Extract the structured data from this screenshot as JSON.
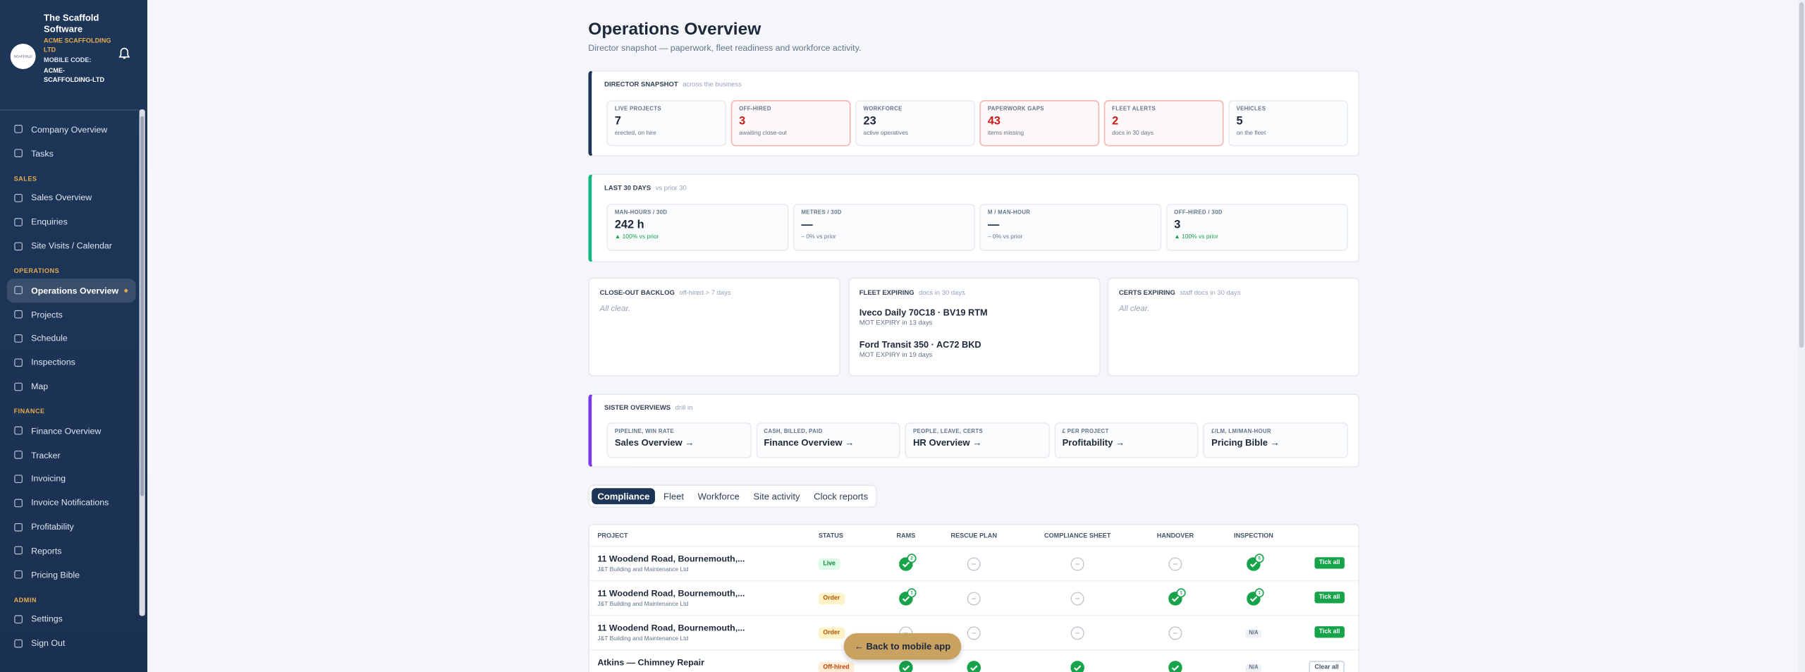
{
  "sidebar": {
    "brand": "The Scaffold Software",
    "company": "ACME SCAFFOLDING LTD",
    "mobile_code_label": "MOBILE CODE:",
    "mobile_code": "ACME-SCAFFOLDING-LTD",
    "groups": [
      {
        "items": [
          "Company Overview",
          "Tasks"
        ]
      },
      {
        "label": "SALES",
        "items": [
          "Sales Overview",
          "Enquiries",
          "Site Visits / Calendar"
        ]
      },
      {
        "label": "OPERATIONS",
        "items": [
          "Operations Overview",
          "Projects",
          "Schedule",
          "Inspections",
          "Map"
        ],
        "active": 0
      },
      {
        "label": "FINANCE",
        "items": [
          "Finance Overview",
          "Tracker",
          "Invoicing",
          "Invoice Notifications",
          "Profitability",
          "Reports",
          "Pricing Bible"
        ]
      },
      {
        "label": "ADMIN",
        "items": [
          "Settings",
          "Sign Out"
        ]
      }
    ]
  },
  "header": {
    "title": "Operations Overview",
    "subtitle": "Director snapshot — paperwork, fleet readiness and workforce activity."
  },
  "snapshot": {
    "title": "DIRECTOR SNAPSHOT",
    "hint": "across the business",
    "tiles": [
      {
        "label": "LIVE PROJECTS",
        "value": "7",
        "note": "erected, on hire"
      },
      {
        "label": "OFF-HIRED",
        "value": "3",
        "note": "awaiting close-out",
        "alert": true
      },
      {
        "label": "WORKFORCE",
        "value": "23",
        "note": "active operatives"
      },
      {
        "label": "PAPERWORK GAPS",
        "value": "43",
        "note": "items missing",
        "alert": true
      },
      {
        "label": "FLEET ALERTS",
        "value": "2",
        "note": "docs in 30 days",
        "alert": true
      },
      {
        "label": "VEHICLES",
        "value": "5",
        "note": "on the fleet"
      }
    ]
  },
  "last30": {
    "title": "LAST 30 DAYS",
    "hint": "vs prior 30",
    "tiles": [
      {
        "label": "MAN-HOURS / 30D",
        "value": "242 h",
        "note": "▲ 100% vs prior",
        "up": true
      },
      {
        "label": "METRES / 30D",
        "value": "—",
        "note": "– 0% vs prior"
      },
      {
        "label": "M / MAN-HOUR",
        "value": "—",
        "note": "– 0% vs prior"
      },
      {
        "label": "OFF-HIRED / 30D",
        "value": "3",
        "note": "▲ 100% vs prior",
        "up": true
      }
    ]
  },
  "panels": [
    {
      "title": "CLOSE-OUT BACKLOG",
      "hint": "off-hired > 7 days",
      "empty": "All clear."
    },
    {
      "title": "FLEET EXPIRING",
      "hint": "docs in 30 days",
      "items": [
        {
          "name": "Iveco Daily 70C18 · BV19 RTM",
          "detail": "MOT EXPIRY in 13 days"
        },
        {
          "name": "Ford Transit 350 · AC72 BKD",
          "detail": "MOT EXPIRY in 19 days"
        }
      ]
    },
    {
      "title": "CERTS EXPIRING",
      "hint": "staff docs in 30 days",
      "empty": "All clear."
    }
  ],
  "sister": {
    "title": "SISTER OVERVIEWS",
    "hint": "drill in",
    "links": [
      {
        "label": "PIPELINE, WIN RATE",
        "target": "Sales Overview →"
      },
      {
        "label": "CASH, BILLED, PAID",
        "target": "Finance Overview →"
      },
      {
        "label": "PEOPLE, LEAVE, CERTS",
        "target": "HR Overview →"
      },
      {
        "label": "£ PER PROJECT",
        "target": "Profitability →"
      },
      {
        "label": "£/LM, LM/MAN-HOUR",
        "target": "Pricing Bible →"
      }
    ]
  },
  "tabs": {
    "items": [
      "Compliance",
      "Fleet",
      "Workforce",
      "Site activity",
      "Clock reports"
    ],
    "active": 0
  },
  "table": {
    "headers": [
      "PROJECT",
      "STATUS",
      "RAMS",
      "RESCUE PLAN",
      "COMPLIANCE SHEET",
      "HANDOVER",
      "INSPECTION"
    ],
    "rows": [
      {
        "project": "11 Woodend Road, Bournemouth,...",
        "client": "J&T Building and Maintenance Ltd",
        "status": "Live",
        "cells": [
          {
            "state": "done",
            "badge": "2"
          },
          {
            "state": "empty"
          },
          {
            "state": "empty"
          },
          {
            "state": "empty"
          },
          {
            "state": "done",
            "badge": "5"
          }
        ],
        "action": "Tick all"
      },
      {
        "project": "11 Woodend Road, Bournemouth,...",
        "client": "J&T Building and Maintenance Ltd",
        "status": "Order",
        "cells": [
          {
            "state": "done",
            "badge": "1"
          },
          {
            "state": "empty"
          },
          {
            "state": "empty"
          },
          {
            "state": "done",
            "badge": "1"
          },
          {
            "state": "done",
            "badge": "1"
          }
        ],
        "action": "Tick all"
      },
      {
        "project": "11 Woodend Road, Bournemouth,...",
        "client": "J&T Building and Maintenance Ltd",
        "status": "Order",
        "cells": [
          {
            "state": "empty"
          },
          {
            "state": "empty"
          },
          {
            "state": "empty"
          },
          {
            "state": "empty"
          },
          {
            "state": "na",
            "label": "N/A"
          }
        ],
        "action": "Tick all"
      },
      {
        "project": "Atkins — Chimney Repair",
        "status": "Off-hired",
        "cells": [
          {
            "state": "done"
          },
          {
            "state": "done"
          },
          {
            "state": "done"
          },
          {
            "state": "done"
          },
          {
            "state": "na",
            "label": "N/A"
          }
        ],
        "action": "Clear all"
      }
    ]
  },
  "back_button": "← Back to mobile app"
}
